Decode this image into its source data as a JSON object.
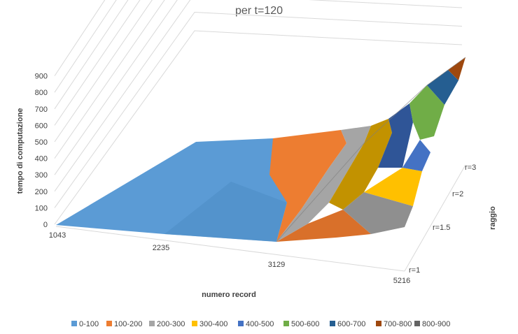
{
  "chart_data": {
    "type": "surface-3d",
    "title": "per t=120",
    "zlabel": "tempo di computazione",
    "xlabel": "numero record",
    "ylabel": "raggio",
    "x_categories": [
      "1043",
      "2235",
      "3129",
      "5216"
    ],
    "y_categories": [
      "r=1",
      "r=1.5",
      "r=2",
      "r=3"
    ],
    "z_ticks": [
      "0",
      "100",
      "200",
      "300",
      "400",
      "500",
      "600",
      "700",
      "800",
      "900"
    ],
    "zlim": [
      0,
      900
    ],
    "values": [
      [
        20,
        60,
        110,
        300
      ],
      [
        25,
        70,
        130,
        400
      ],
      [
        30,
        80,
        150,
        550
      ],
      [
        40,
        90,
        180,
        880
      ]
    ],
    "legend": {
      "position": "bottom",
      "entries": [
        {
          "label": "0-100",
          "color": "#5b9bd5"
        },
        {
          "label": "100-200",
          "color": "#ed7d31"
        },
        {
          "label": "200-300",
          "color": "#a5a5a5"
        },
        {
          "label": "300-400",
          "color": "#ffc000"
        },
        {
          "label": "400-500",
          "color": "#4472c4"
        },
        {
          "label": "500-600",
          "color": "#70ad47"
        },
        {
          "label": "600-700",
          "color": "#255e91"
        },
        {
          "label": "700-800",
          "color": "#9e480e"
        },
        {
          "label": "800-900",
          "color": "#636363"
        }
      ]
    },
    "grid": true
  }
}
